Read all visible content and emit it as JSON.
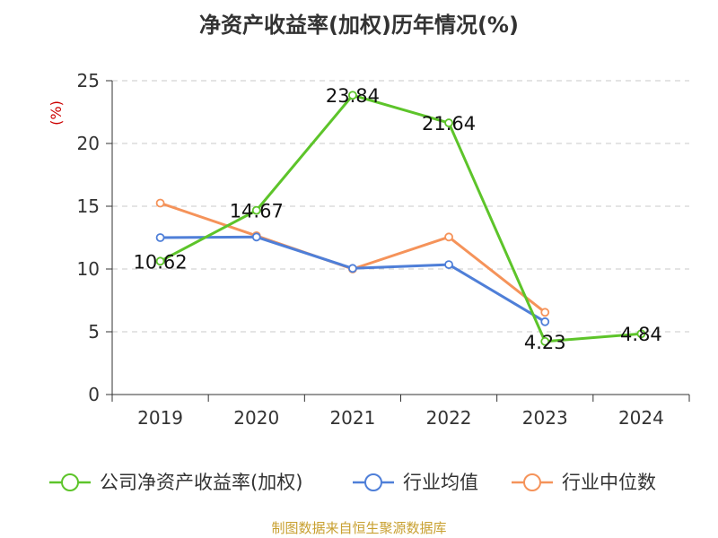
{
  "chart_data": {
    "type": "line",
    "title": "净资产收益率(加权)历年情况(%)",
    "ylabel": "(%)",
    "xlabel": "",
    "categories": [
      "2019",
      "2020",
      "2021",
      "2022",
      "2023",
      "2024"
    ],
    "ylim": [
      0,
      25
    ],
    "yticks": [
      0,
      5,
      10,
      15,
      20,
      25
    ],
    "grid": true,
    "legend_position": "bottom",
    "series": [
      {
        "name": "公司净资产收益率(加权)",
        "color": "#5dc42a",
        "values": [
          10.62,
          14.67,
          23.84,
          21.64,
          4.23,
          4.84
        ],
        "labels": [
          "10.62",
          "14.67",
          "23.84",
          "21.64",
          "4.23",
          "4.84"
        ]
      },
      {
        "name": "行业均值",
        "color": "#4f7fd8",
        "values": [
          12.5,
          12.55,
          10.05,
          10.35,
          5.8,
          null
        ],
        "labels": null
      },
      {
        "name": "行业中位数",
        "color": "#f5935a",
        "values": [
          15.25,
          12.65,
          10.0,
          12.55,
          6.55,
          null
        ],
        "labels": null
      }
    ]
  },
  "source": "制图数据来自恒生聚源数据库"
}
